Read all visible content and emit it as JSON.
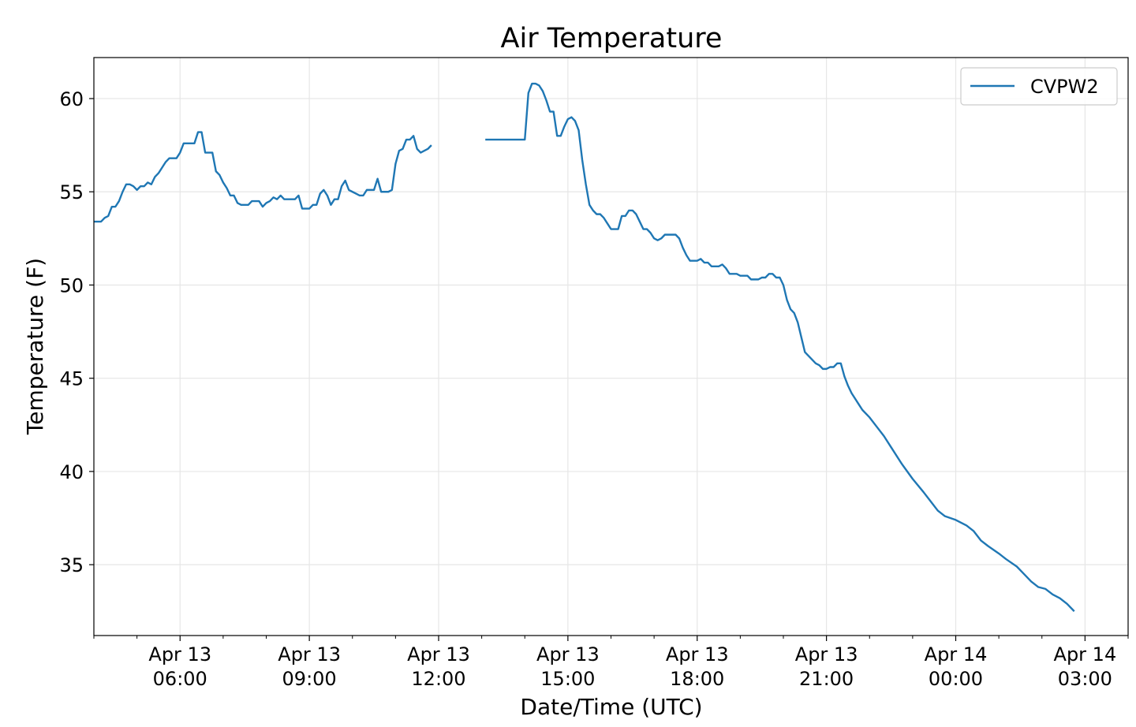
{
  "chart_data": {
    "type": "line",
    "title": "Air Temperature",
    "xlabel": "Date/Time (UTC)",
    "ylabel": "Temperature (F)",
    "x_unit": "hours (UTC)",
    "xlim": [
      "Apr 13 04:00",
      "Apr 14 04:00"
    ],
    "ylim": [
      31.2,
      62.2
    ],
    "grid": true,
    "legend_position": "top-right",
    "y_ticks": [
      35,
      40,
      45,
      50,
      55,
      60
    ],
    "x_ticks": [
      {
        "t": "Apr 13 06:00",
        "line1": "Apr 13",
        "line2": "06:00"
      },
      {
        "t": "Apr 13 09:00",
        "line1": "Apr 13",
        "line2": "09:00"
      },
      {
        "t": "Apr 13 12:00",
        "line1": "Apr 13",
        "line2": "12:00"
      },
      {
        "t": "Apr 13 15:00",
        "line1": "Apr 13",
        "line2": "15:00"
      },
      {
        "t": "Apr 13 18:00",
        "line1": "Apr 13",
        "line2": "18:00"
      },
      {
        "t": "Apr 13 21:00",
        "line1": "Apr 13",
        "line2": "21:00"
      },
      {
        "t": "Apr 14 00:00",
        "line1": "Apr 14",
        "line2": "00:00"
      },
      {
        "t": "Apr 14 03:00",
        "line1": "Apr 14",
        "line2": "03:00"
      }
    ],
    "series": [
      {
        "name": "CVPW2",
        "color": "#1f77b4",
        "segments": [
          [
            [
              "Apr 13 04:00",
              53.4
            ],
            [
              "Apr 13 04:10",
              53.4
            ],
            [
              "Apr 13 04:15",
              53.6
            ],
            [
              "Apr 13 04:20",
              53.7
            ],
            [
              "Apr 13 04:25",
              54.2
            ],
            [
              "Apr 13 04:30",
              54.2
            ],
            [
              "Apr 13 04:35",
              54.5
            ],
            [
              "Apr 13 04:40",
              55.0
            ],
            [
              "Apr 13 04:45",
              55.4
            ],
            [
              "Apr 13 04:50",
              55.4
            ],
            [
              "Apr 13 04:55",
              55.3
            ],
            [
              "Apr 13 05:00",
              55.1
            ],
            [
              "Apr 13 05:05",
              55.3
            ],
            [
              "Apr 13 05:10",
              55.3
            ],
            [
              "Apr 13 05:15",
              55.5
            ],
            [
              "Apr 13 05:20",
              55.4
            ],
            [
              "Apr 13 05:25",
              55.8
            ],
            [
              "Apr 13 05:30",
              56.0
            ],
            [
              "Apr 13 05:35",
              56.3
            ],
            [
              "Apr 13 05:40",
              56.6
            ],
            [
              "Apr 13 05:45",
              56.8
            ],
            [
              "Apr 13 05:55",
              56.8
            ],
            [
              "Apr 13 06:00",
              57.1
            ],
            [
              "Apr 13 06:05",
              57.6
            ],
            [
              "Apr 13 06:20",
              57.6
            ],
            [
              "Apr 13 06:25",
              58.2
            ],
            [
              "Apr 13 06:30",
              58.2
            ],
            [
              "Apr 13 06:35",
              57.1
            ],
            [
              "Apr 13 06:45",
              57.1
            ],
            [
              "Apr 13 06:50",
              56.1
            ],
            [
              "Apr 13 06:55",
              55.9
            ],
            [
              "Apr 13 07:00",
              55.5
            ],
            [
              "Apr 13 07:05",
              55.2
            ],
            [
              "Apr 13 07:10",
              54.8
            ],
            [
              "Apr 13 07:15",
              54.8
            ],
            [
              "Apr 13 07:20",
              54.4
            ],
            [
              "Apr 13 07:25",
              54.3
            ],
            [
              "Apr 13 07:35",
              54.3
            ],
            [
              "Apr 13 07:40",
              54.5
            ],
            [
              "Apr 13 07:50",
              54.5
            ],
            [
              "Apr 13 07:55",
              54.2
            ],
            [
              "Apr 13 08:00",
              54.4
            ],
            [
              "Apr 13 08:05",
              54.5
            ],
            [
              "Apr 13 08:10",
              54.7
            ],
            [
              "Apr 13 08:15",
              54.6
            ],
            [
              "Apr 13 08:20",
              54.8
            ],
            [
              "Apr 13 08:25",
              54.6
            ],
            [
              "Apr 13 08:40",
              54.6
            ],
            [
              "Apr 13 08:45",
              54.8
            ],
            [
              "Apr 13 08:50",
              54.1
            ],
            [
              "Apr 13 09:00",
              54.1
            ],
            [
              "Apr 13 09:05",
              54.3
            ],
            [
              "Apr 13 09:10",
              54.3
            ],
            [
              "Apr 13 09:15",
              54.9
            ],
            [
              "Apr 13 09:20",
              55.1
            ],
            [
              "Apr 13 09:25",
              54.8
            ],
            [
              "Apr 13 09:30",
              54.3
            ],
            [
              "Apr 13 09:35",
              54.6
            ],
            [
              "Apr 13 09:40",
              54.6
            ],
            [
              "Apr 13 09:45",
              55.3
            ],
            [
              "Apr 13 09:50",
              55.6
            ],
            [
              "Apr 13 09:55",
              55.1
            ],
            [
              "Apr 13 10:00",
              55.0
            ],
            [
              "Apr 13 10:05",
              54.9
            ],
            [
              "Apr 13 10:10",
              54.8
            ],
            [
              "Apr 13 10:15",
              54.8
            ],
            [
              "Apr 13 10:20",
              55.1
            ],
            [
              "Apr 13 10:25",
              55.1
            ],
            [
              "Apr 13 10:30",
              55.1
            ],
            [
              "Apr 13 10:35",
              55.7
            ],
            [
              "Apr 13 10:40",
              55.0
            ],
            [
              "Apr 13 10:50",
              55.0
            ],
            [
              "Apr 13 10:55",
              55.1
            ],
            [
              "Apr 13 11:00",
              56.5
            ],
            [
              "Apr 13 11:05",
              57.2
            ],
            [
              "Apr 13 11:10",
              57.3
            ],
            [
              "Apr 13 11:15",
              57.8
            ],
            [
              "Apr 13 11:20",
              57.8
            ],
            [
              "Apr 13 11:25",
              58.0
            ],
            [
              "Apr 13 11:30",
              57.3
            ],
            [
              "Apr 13 11:35",
              57.1
            ],
            [
              "Apr 13 11:40",
              57.2
            ],
            [
              "Apr 13 11:45",
              57.3
            ],
            [
              "Apr 13 11:50",
              57.5
            ]
          ],
          [
            [
              "Apr 13 13:05",
              57.8
            ],
            [
              "Apr 13 14:00",
              57.8
            ],
            [
              "Apr 13 14:05",
              60.3
            ],
            [
              "Apr 13 14:10",
              60.8
            ],
            [
              "Apr 13 14:15",
              60.8
            ],
            [
              "Apr 13 14:20",
              60.7
            ],
            [
              "Apr 13 14:25",
              60.4
            ],
            [
              "Apr 13 14:30",
              59.9
            ],
            [
              "Apr 13 14:35",
              59.3
            ],
            [
              "Apr 13 14:40",
              59.3
            ],
            [
              "Apr 13 14:45",
              58.0
            ],
            [
              "Apr 13 14:50",
              58.0
            ],
            [
              "Apr 13 14:55",
              58.5
            ],
            [
              "Apr 13 15:00",
              58.9
            ],
            [
              "Apr 13 15:05",
              59.0
            ],
            [
              "Apr 13 15:10",
              58.8
            ],
            [
              "Apr 13 15:15",
              58.3
            ],
            [
              "Apr 13 15:20",
              56.7
            ],
            [
              "Apr 13 15:25",
              55.4
            ],
            [
              "Apr 13 15:30",
              54.3
            ],
            [
              "Apr 13 15:35",
              54.0
            ],
            [
              "Apr 13 15:40",
              53.8
            ],
            [
              "Apr 13 15:45",
              53.8
            ],
            [
              "Apr 13 15:50",
              53.6
            ],
            [
              "Apr 13 15:55",
              53.3
            ],
            [
              "Apr 13 16:00",
              53.0
            ],
            [
              "Apr 13 16:10",
              53.0
            ],
            [
              "Apr 13 16:15",
              53.7
            ],
            [
              "Apr 13 16:20",
              53.7
            ],
            [
              "Apr 13 16:25",
              54.0
            ],
            [
              "Apr 13 16:30",
              54.0
            ],
            [
              "Apr 13 16:35",
              53.8
            ],
            [
              "Apr 13 16:40",
              53.4
            ],
            [
              "Apr 13 16:45",
              53.0
            ],
            [
              "Apr 13 16:50",
              53.0
            ],
            [
              "Apr 13 16:55",
              52.8
            ],
            [
              "Apr 13 17:00",
              52.5
            ],
            [
              "Apr 13 17:05",
              52.4
            ],
            [
              "Apr 13 17:10",
              52.5
            ],
            [
              "Apr 13 17:15",
              52.7
            ],
            [
              "Apr 13 17:30",
              52.7
            ],
            [
              "Apr 13 17:35",
              52.5
            ],
            [
              "Apr 13 17:40",
              52.0
            ],
            [
              "Apr 13 17:45",
              51.6
            ],
            [
              "Apr 13 17:50",
              51.3
            ],
            [
              "Apr 13 18:00",
              51.3
            ],
            [
              "Apr 13 18:05",
              51.4
            ],
            [
              "Apr 13 18:10",
              51.2
            ],
            [
              "Apr 13 18:15",
              51.2
            ],
            [
              "Apr 13 18:20",
              51.0
            ],
            [
              "Apr 13 18:30",
              51.0
            ],
            [
              "Apr 13 18:35",
              51.1
            ],
            [
              "Apr 13 18:40",
              50.9
            ],
            [
              "Apr 13 18:45",
              50.6
            ],
            [
              "Apr 13 18:55",
              50.6
            ],
            [
              "Apr 13 19:00",
              50.5
            ],
            [
              "Apr 13 19:10",
              50.5
            ],
            [
              "Apr 13 19:15",
              50.3
            ],
            [
              "Apr 13 19:25",
              50.3
            ],
            [
              "Apr 13 19:30",
              50.4
            ],
            [
              "Apr 13 19:35",
              50.4
            ],
            [
              "Apr 13 19:40",
              50.6
            ],
            [
              "Apr 13 19:45",
              50.6
            ],
            [
              "Apr 13 19:50",
              50.4
            ],
            [
              "Apr 13 19:55",
              50.4
            ],
            [
              "Apr 13 20:00",
              50.0
            ],
            [
              "Apr 13 20:05",
              49.2
            ],
            [
              "Apr 13 20:10",
              48.7
            ],
            [
              "Apr 13 20:15",
              48.5
            ],
            [
              "Apr 13 20:20",
              48.0
            ],
            [
              "Apr 13 20:25",
              47.2
            ],
            [
              "Apr 13 20:30",
              46.4
            ],
            [
              "Apr 13 20:35",
              46.2
            ],
            [
              "Apr 13 20:40",
              46.0
            ],
            [
              "Apr 13 20:45",
              45.8
            ],
            [
              "Apr 13 20:50",
              45.7
            ],
            [
              "Apr 13 20:55",
              45.5
            ],
            [
              "Apr 13 21:00",
              45.5
            ],
            [
              "Apr 13 21:05",
              45.6
            ],
            [
              "Apr 13 21:10",
              45.6
            ],
            [
              "Apr 13 21:15",
              45.8
            ],
            [
              "Apr 13 21:20",
              45.8
            ],
            [
              "Apr 13 21:25",
              45.1
            ],
            [
              "Apr 13 21:30",
              44.6
            ],
            [
              "Apr 13 21:35",
              44.2
            ],
            [
              "Apr 13 21:45",
              43.6
            ],
            [
              "Apr 13 21:50",
              43.3
            ],
            [
              "Apr 13 22:00",
              42.9
            ],
            [
              "Apr 13 22:10",
              42.4
            ],
            [
              "Apr 13 22:20",
              41.9
            ],
            [
              "Apr 13 22:30",
              41.3
            ],
            [
              "Apr 13 22:45",
              40.4
            ],
            [
              "Apr 13 23:00",
              39.6
            ],
            [
              "Apr 13 23:15",
              38.9
            ],
            [
              "Apr 13 23:25",
              38.4
            ],
            [
              "Apr 13 23:35",
              37.9
            ],
            [
              "Apr 13 23:45",
              37.6
            ],
            [
              "Apr 14 00:00",
              37.4
            ],
            [
              "Apr 14 00:15",
              37.1
            ],
            [
              "Apr 14 00:25",
              36.8
            ],
            [
              "Apr 14 00:35",
              36.3
            ],
            [
              "Apr 14 00:45",
              36.0
            ],
            [
              "Apr 14 01:00",
              35.6
            ],
            [
              "Apr 14 01:10",
              35.3
            ],
            [
              "Apr 14 01:25",
              34.9
            ],
            [
              "Apr 14 01:35",
              34.5
            ],
            [
              "Apr 14 01:45",
              34.1
            ],
            [
              "Apr 14 01:55",
              33.8
            ],
            [
              "Apr 14 02:05",
              33.7
            ],
            [
              "Apr 14 02:15",
              33.4
            ],
            [
              "Apr 14 02:25",
              33.2
            ],
            [
              "Apr 14 02:35",
              32.9
            ],
            [
              "Apr 14 02:45",
              32.5
            ]
          ]
        ]
      }
    ]
  }
}
